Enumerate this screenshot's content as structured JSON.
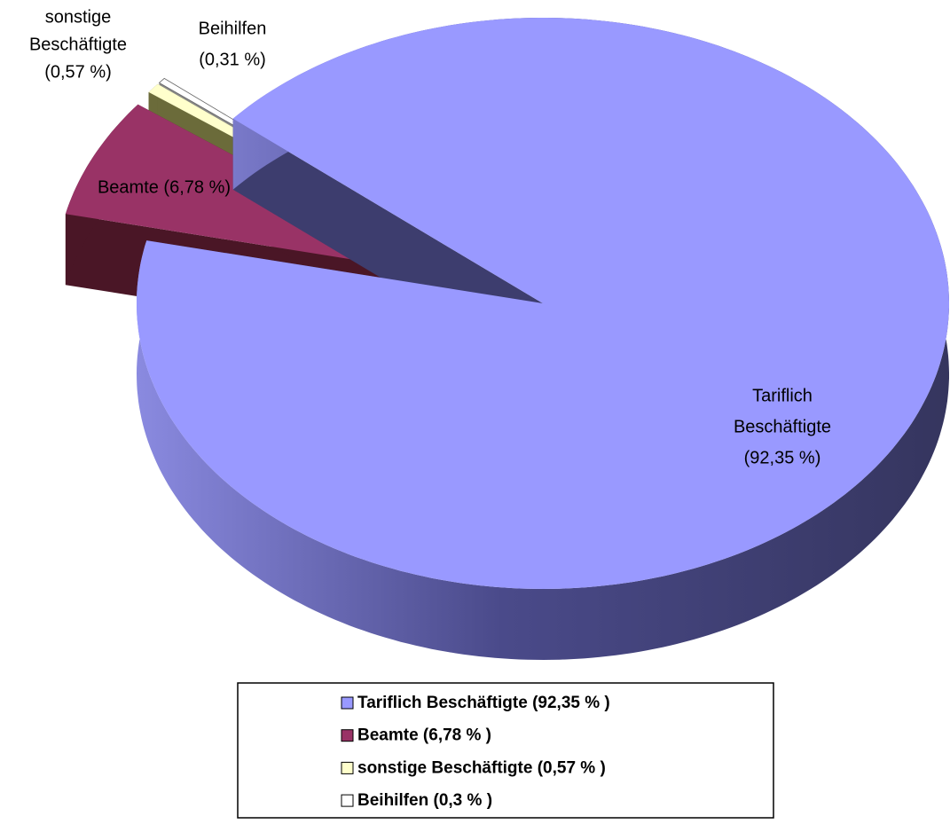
{
  "chart_data": {
    "type": "pie",
    "categories": [
      "Tariflich Beschäftigte (92,35 % )",
      "Beamte (6,78 % )",
      "sonstige Beschäftigte (0,57 % )",
      "Beihilfen (0,3 % )"
    ],
    "values": [
      92.35,
      6.78,
      0.57,
      0.31
    ],
    "value_labels": [
      [
        "Tariflich",
        "Beschäftigte",
        "(92,35 %)"
      ],
      [
        "Beamte (6,78 %)"
      ],
      [
        "sonstige",
        "Beschäftigte",
        "(0,57 %)"
      ],
      [
        "Beihilfen",
        "(0,31 %)"
      ]
    ],
    "colors": [
      "#9999ff",
      "#993366",
      "#ffffcc",
      "#ffffff"
    ],
    "side_colors": [
      "#3d3d6e",
      "#4a1626",
      "#6b6b3a",
      "#888888"
    ],
    "legend": "bottom"
  }
}
